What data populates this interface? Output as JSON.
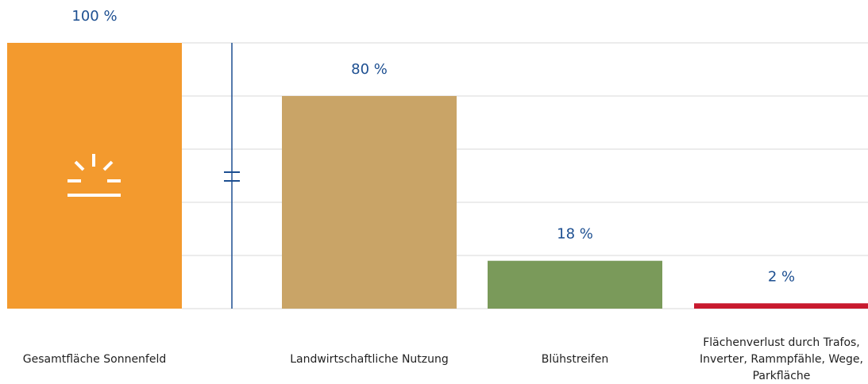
{
  "chart_data": {
    "type": "bar",
    "categories": [
      "Gesamtfläche Sonnenfeld",
      "Landwirtschaftliche Nutzung",
      "Blühstreifen",
      "Flächenverlust durch Trafos, Inverter, Rammpfähle, Wege, Parkfläche"
    ],
    "values": [
      100,
      80,
      18,
      2
    ],
    "value_labels": [
      "100 %",
      "80 %",
      "18 %",
      "2 %"
    ],
    "colors": [
      "#f39a2e",
      "#c9a467",
      "#7a9a5a",
      "#c8192e"
    ],
    "ylim": [
      0,
      100
    ],
    "yticks": [
      0,
      20,
      40,
      60,
      80,
      100
    ],
    "grid": true
  }
}
